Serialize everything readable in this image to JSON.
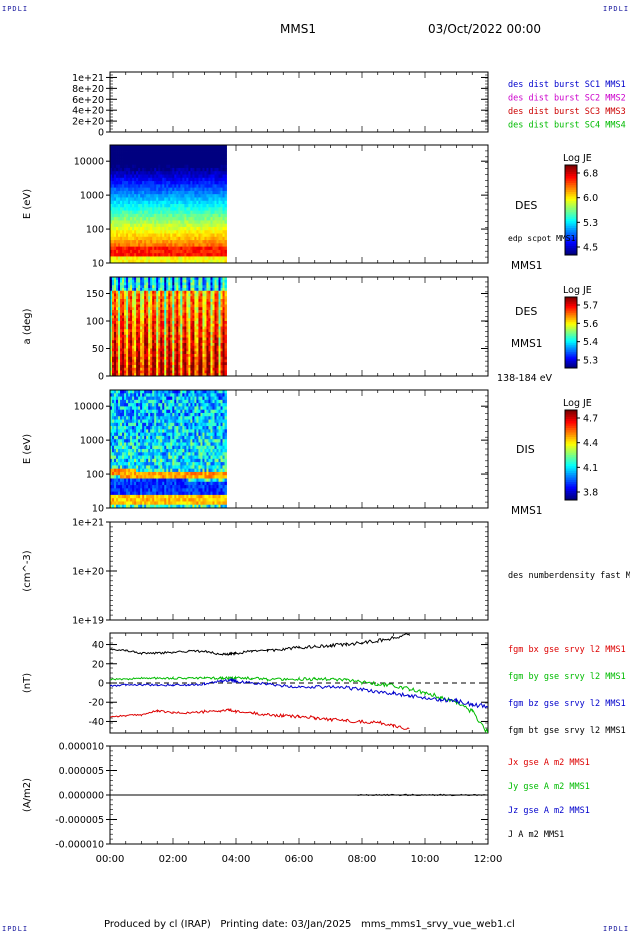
{
  "corners": {
    "tl": "IPDLI",
    "tr": "IPDLI",
    "bl": "IPDLI",
    "br": "IPDLI"
  },
  "header": {
    "spacecraft": "MMS1",
    "datetime": "03/Oct/2022 00:00"
  },
  "footer": {
    "produced_by": "Produced by cl (IRAP)",
    "printing_date": "Printing date: 03/Jan/2025",
    "filename": "mms_mms1_srvy_vue_web1.cl"
  },
  "chart_data": [
    {
      "type": "line",
      "ylabel": "",
      "yticks": [
        "1e+21",
        "8e+20",
        "6e+20",
        "4e+20",
        "2e+20",
        "0"
      ],
      "ytick_values": [
        1e+21,
        8e+20,
        6e+20,
        4e+20,
        2e+20,
        0
      ],
      "ylim": [
        0,
        1.1e+21
      ],
      "zero_line": true,
      "legend": [
        {
          "label": "des dist burst SC1 MMS1",
          "color": "#0000cc"
        },
        {
          "label": "des dist burst SC2 MMS2",
          "color": "#cc00cc"
        },
        {
          "label": "des dist burst SC3 MMS3",
          "color": "#cc0000"
        },
        {
          "label": "des dist burst SC4 MMS4",
          "color": "#00bb00"
        }
      ]
    },
    {
      "type": "heatmap",
      "ylabel": "E (eV)",
      "yscale": "log",
      "yticks": [
        "10000",
        "1000",
        "100",
        "10"
      ],
      "ytick_values": [
        10000,
        1000,
        100,
        10
      ],
      "ylim": [
        10,
        30000
      ],
      "data_end_hour": 3.7,
      "labels": [
        "DES",
        "edp scpot MMS1",
        "MMS1"
      ],
      "colorbar": {
        "title": "Log JE",
        "ticks": [
          "6.8",
          "6.0",
          "5.3",
          "4.5"
        ]
      }
    },
    {
      "type": "heatmap",
      "ylabel": "a (deg)",
      "yticks": [
        "150",
        "100",
        "50",
        "0"
      ],
      "ytick_values": [
        150,
        100,
        50,
        0
      ],
      "ylim": [
        0,
        180
      ],
      "data_end_hour": 3.7,
      "labels": [
        "DES",
        "MMS1",
        "138-184 eV"
      ],
      "colorbar": {
        "title": "Log JE",
        "ticks": [
          "5.7",
          "5.6",
          "5.4",
          "5.3"
        ]
      }
    },
    {
      "type": "heatmap",
      "ylabel": "E (eV)",
      "yscale": "log",
      "yticks": [
        "10000",
        "1000",
        "100",
        "10"
      ],
      "ytick_values": [
        10000,
        1000,
        100,
        10
      ],
      "ylim": [
        10,
        30000
      ],
      "data_end_hour": 3.7,
      "labels": [
        "DIS",
        "MMS1"
      ],
      "colorbar": {
        "title": "Log JE",
        "ticks": [
          "4.7",
          "4.4",
          "4.1",
          "3.8"
        ]
      }
    },
    {
      "type": "line",
      "ylabel": "(cm^-3)",
      "yscale": "log",
      "yticks": [
        "1e+21",
        "1e+20",
        "1e+19"
      ],
      "ytick_values": [
        1e+21,
        1e+20,
        1e+19
      ],
      "ylim": [
        1e+19,
        1e+21
      ],
      "legend": [
        {
          "label": "des numberdensity fast M",
          "color": "#000000"
        }
      ]
    },
    {
      "type": "line",
      "ylabel": "(nT)",
      "yticks": [
        "40",
        "20",
        "0",
        "-20",
        "-40"
      ],
      "ytick_values": [
        40,
        20,
        0,
        -20,
        -40
      ],
      "ylim": [
        -52,
        52
      ],
      "zero_line": true,
      "x_hours": [
        0,
        0.5,
        1,
        1.5,
        2,
        2.5,
        3,
        3.5,
        3.8,
        4,
        4.5,
        5,
        5.5,
        6,
        6.5,
        7,
        7.5,
        8,
        8.5,
        9,
        9.5,
        10,
        10.5,
        11,
        11.5,
        12
      ],
      "series": [
        {
          "name": "fgm bx gse srvy l2 MMS1",
          "color": "#dd0000",
          "values": [
            -35,
            -34,
            -33,
            -29,
            -31,
            -31,
            -30,
            -29,
            -28,
            -30,
            -31,
            -33,
            -34,
            -35,
            -36,
            -38,
            -39,
            -40,
            -41,
            -44,
            -48,
            null,
            null,
            null,
            null,
            null
          ]
        },
        {
          "name": "fgm by gse srvy l2 MMS1",
          "color": "#00bb00",
          "values": [
            4,
            4,
            5,
            5,
            5,
            5,
            5,
            5,
            5,
            5,
            5,
            4,
            4,
            4,
            4,
            4,
            3,
            1,
            -1,
            -3,
            -6,
            -10,
            -15,
            -20,
            -30,
            -52
          ]
        },
        {
          "name": "fgm bz gse srvy l2 MMS1",
          "color": "#0000cc",
          "values": [
            -3,
            -2,
            -2,
            -2,
            -2,
            -2,
            -1,
            2,
            3,
            2,
            0,
            -1,
            -3,
            -4,
            -4,
            -4,
            -5,
            -7,
            -9,
            -11,
            -13,
            -15,
            -17,
            -19,
            -22,
            -25
          ]
        },
        {
          "name": "fgm bt gse srvy l2 MMS1",
          "color": "#000000",
          "values": [
            35,
            34,
            31,
            31,
            32,
            33,
            33,
            30,
            30,
            31,
            33,
            34,
            35,
            37,
            38,
            39,
            40,
            42,
            44,
            47,
            50,
            null,
            null,
            null,
            null,
            null
          ]
        }
      ]
    },
    {
      "type": "line",
      "ylabel": "(A/m2)",
      "yticks": [
        "0.000010",
        "0.000005",
        "0.000000",
        "-0.000005",
        "-0.000010"
      ],
      "ytick_values": [
        1e-05,
        5e-06,
        0,
        -5e-06,
        -1e-05
      ],
      "ylim": [
        -1e-05,
        1e-05
      ],
      "x_hours": [
        0,
        12
      ],
      "series": [
        {
          "name": "Jx gse A m2 MMS1",
          "color": "#dd0000",
          "values": [
            0,
            0
          ]
        },
        {
          "name": "Jy gse A m2 MMS1",
          "color": "#00bb00",
          "values": [
            0,
            0
          ]
        },
        {
          "name": "Jz gse A m2 MMS1",
          "color": "#0000cc",
          "values": [
            0,
            0
          ]
        },
        {
          "name": "J A m2 MMS1",
          "color": "#000000",
          "values": [
            0,
            0
          ]
        }
      ],
      "xticks": [
        "00:00",
        "02:00",
        "04:00",
        "06:00",
        "08:00",
        "10:00",
        "12:00"
      ],
      "xlim": [
        0,
        12
      ]
    }
  ]
}
